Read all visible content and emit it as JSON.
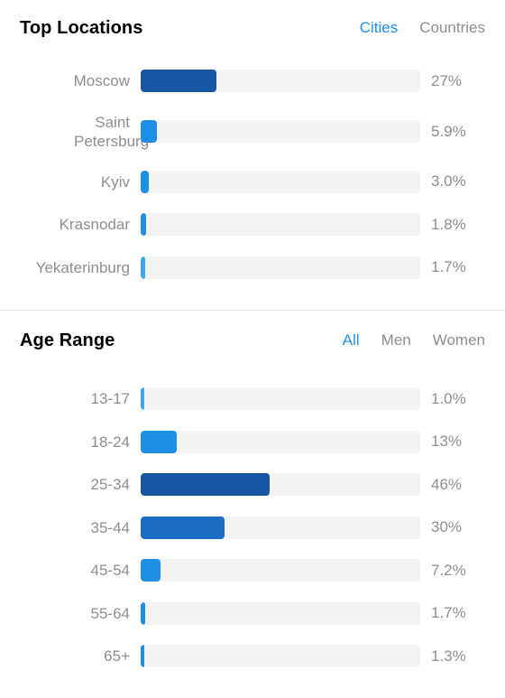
{
  "top_locations": {
    "title": "Top Locations",
    "tabs": [
      {
        "label": "Cities",
        "active": true
      },
      {
        "label": "Countries",
        "active": false
      }
    ],
    "rows": [
      {
        "label": "Moscow",
        "value_label": "27%",
        "value": 27,
        "color": "#1656a3"
      },
      {
        "label": "Saint Petersburg",
        "value_label": "5.9%",
        "value": 5.9,
        "color": "#1f8fe6"
      },
      {
        "label": "Kyiv",
        "value_label": "3.0%",
        "value": 3.0,
        "color": "#1f8fe6"
      },
      {
        "label": "Krasnodar",
        "value_label": "1.8%",
        "value": 1.8,
        "color": "#1f8fe6"
      },
      {
        "label": "Yekaterinburg",
        "value_label": "1.7%",
        "value": 1.7,
        "color": "#3fa7f2"
      }
    ]
  },
  "age_range": {
    "title": "Age Range",
    "tabs": [
      {
        "label": "All",
        "active": true
      },
      {
        "label": "Men",
        "active": false
      },
      {
        "label": "Women",
        "active": false
      }
    ],
    "rows": [
      {
        "label": "13-17",
        "value_label": "1.0%",
        "value": 1.0,
        "color": "#3fa7f2"
      },
      {
        "label": "18-24",
        "value_label": "13%",
        "value": 13,
        "color": "#1f8fe6"
      },
      {
        "label": "25-34",
        "value_label": "46%",
        "value": 46,
        "color": "#1656a3"
      },
      {
        "label": "35-44",
        "value_label": "30%",
        "value": 30,
        "color": "#1a6cc4"
      },
      {
        "label": "45-54",
        "value_label": "7.2%",
        "value": 7.2,
        "color": "#1f8fe6"
      },
      {
        "label": "55-64",
        "value_label": "1.7%",
        "value": 1.7,
        "color": "#1f8fe6"
      },
      {
        "label": "65+",
        "value_label": "1.3%",
        "value": 1.3,
        "color": "#1f8fe6"
      }
    ]
  }
}
